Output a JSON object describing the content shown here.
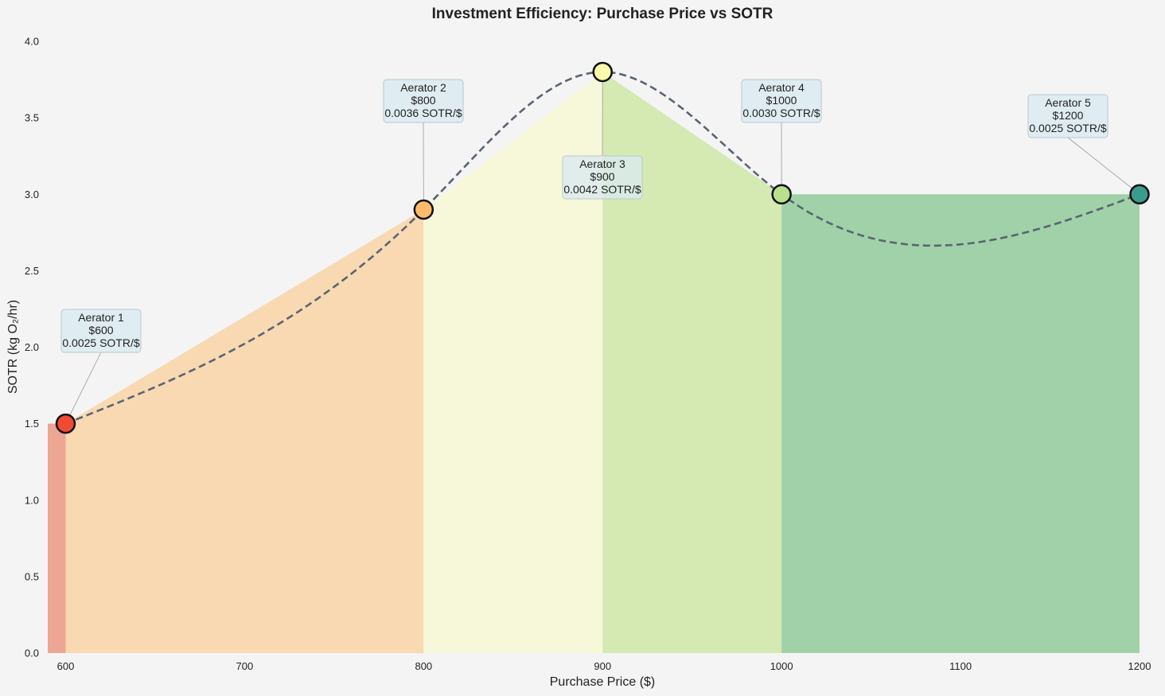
{
  "chart_data": {
    "type": "area",
    "title": "Investment Efficiency: Purchase Price vs SOTR",
    "xlabel": "Purchase Price ($)",
    "ylabel": "SOTR (kg O₂/hr)",
    "xlim": [
      590,
      1200
    ],
    "ylim": [
      0,
      4.0
    ],
    "xticks": [
      "600",
      "700",
      "800",
      "900",
      "1000",
      "1100",
      "1200"
    ],
    "yticks": [
      "0.0",
      "0.5",
      "1.0",
      "1.5",
      "2.0",
      "2.5",
      "3.0",
      "3.5",
      "4.0"
    ],
    "grid": false,
    "points": [
      {
        "name": "Aerator 1",
        "price": 600,
        "sotr": 1.5,
        "price_label": "$600",
        "efficiency_label": "0.0025 SOTR/$",
        "color": "#f04a33",
        "fill": "#eda594"
      },
      {
        "name": "Aerator 2",
        "price": 800,
        "sotr": 2.9,
        "price_label": "$800",
        "efficiency_label": "0.0036 SOTR/$",
        "color": "#fdbb6b",
        "fill": "#f8d9b1"
      },
      {
        "name": "Aerator 3",
        "price": 900,
        "sotr": 3.8,
        "price_label": "$900",
        "efficiency_label": "0.0042 SOTR/$",
        "color": "#fbfbab",
        "fill": "#f7f8da"
      },
      {
        "name": "Aerator 4",
        "price": 1000,
        "sotr": 3.0,
        "price_label": "$1000",
        "efficiency_label": "0.0030 SOTR/$",
        "color": "#b9e08c",
        "fill": "#d5e9b3"
      },
      {
        "name": "Aerator 5",
        "price": 1200,
        "sotr": 3.0,
        "price_label": "$1200",
        "efficiency_label": "0.0025 SOTR/$",
        "color": "#3a9c8c",
        "fill": "#a0d1a8"
      }
    ],
    "trend_line": {
      "style": "dashed",
      "color": "#5a6473"
    }
  }
}
